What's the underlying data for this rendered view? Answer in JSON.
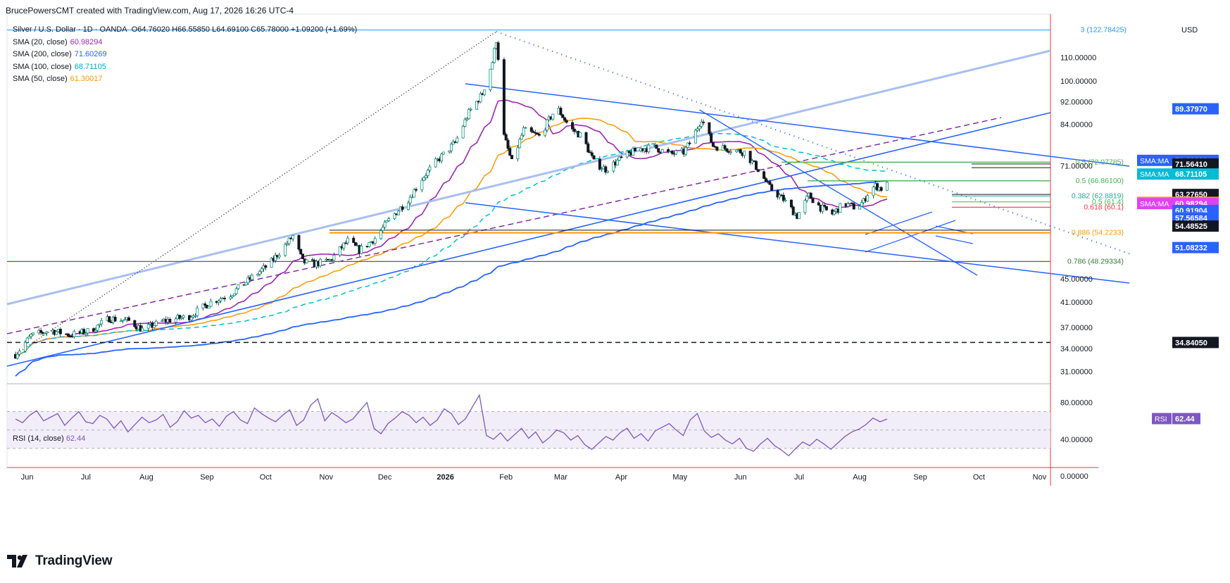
{
  "header": {
    "attribution": "BrucePowersCMT created with TradingView.com, Aug 17, 2026 16:26 UTC-4"
  },
  "symbol": {
    "name": "Silver / U.S. Dollar · 1D · OANDA",
    "ohlc": "O64.76020 H66.55850 L64.69100 C65.78000 +1.09200 (+1.69%)",
    "currency": "USD"
  },
  "indicators": [
    {
      "label": "SMA (20, close)",
      "value": "60.98294",
      "color": "#9c27b0"
    },
    {
      "label": "SMA (200, close)",
      "value": "71.60269",
      "color": "#2962ff"
    },
    {
      "label": "SMA (100, close)",
      "value": "68.71105",
      "color": "#00bcd4"
    },
    {
      "label": "SMA (50, close)",
      "value": "61.30017",
      "color": "#ff9800"
    }
  ],
  "rsi": {
    "label": "RSI (14, close)",
    "value": "62.44",
    "tag": "RSI",
    "color": "#7e57c2"
  },
  "branding": {
    "name": "TradingView"
  },
  "chart_data": {
    "type": "candlestick",
    "y_scale": "log",
    "ylim": [
      29.5,
      128
    ],
    "y_ticks": [
      "110.00000",
      "100.00000",
      "92.00000",
      "84.00000",
      "71.00000",
      "45.00000",
      "41.00000",
      "37.00000",
      "34.00000",
      "31.00000"
    ],
    "x_labels": [
      "Jun",
      "Jul",
      "Aug",
      "Sep",
      "Oct",
      "Nov",
      "Dec",
      "2026",
      "Feb",
      "Mar",
      "Apr",
      "May",
      "Jun",
      "Jul",
      "Aug",
      "Sep",
      "Oct",
      "Nov"
    ],
    "price_path": [
      [
        "2025-05-28",
        33.2
      ],
      [
        "2025-06-05",
        35.8
      ],
      [
        "2025-06-15",
        36.6
      ],
      [
        "2025-06-25",
        35.9
      ],
      [
        "2025-07-05",
        36.5
      ],
      [
        "2025-07-15",
        38.4
      ],
      [
        "2025-07-25",
        38.0
      ],
      [
        "2025-08-01",
        36.7
      ],
      [
        "2025-08-12",
        38.0
      ],
      [
        "2025-08-25",
        38.7
      ],
      [
        "2025-09-05",
        41.0
      ],
      [
        "2025-09-15",
        42.3
      ],
      [
        "2025-09-25",
        45.0
      ],
      [
        "2025-10-05",
        47.8
      ],
      [
        "2025-10-14",
        52.0
      ],
      [
        "2025-10-17",
        53.5
      ],
      [
        "2025-10-22",
        48.2
      ],
      [
        "2025-10-28",
        47.8
      ],
      [
        "2025-11-05",
        48.5
      ],
      [
        "2025-11-14",
        52.5
      ],
      [
        "2025-11-20",
        50.5
      ],
      [
        "2025-11-28",
        53.0
      ],
      [
        "2025-12-05",
        57.0
      ],
      [
        "2025-12-15",
        62.0
      ],
      [
        "2025-12-22",
        67.5
      ],
      [
        "2025-12-29",
        72.0
      ],
      [
        "2026-01-08",
        78.0
      ],
      [
        "2026-01-15",
        88.0
      ],
      [
        "2026-01-22",
        95.0
      ],
      [
        "2026-01-27",
        108.0
      ],
      [
        "2026-01-29",
        118.0
      ],
      [
        "2026-01-30",
        110.0
      ],
      [
        "2026-02-02",
        80.0
      ],
      [
        "2026-02-06",
        72.0
      ],
      [
        "2026-02-12",
        82.0
      ],
      [
        "2026-02-20",
        80.0
      ],
      [
        "2026-03-01",
        90.0
      ],
      [
        "2026-03-08",
        82.5
      ],
      [
        "2026-03-14",
        80.0
      ],
      [
        "2026-03-20",
        72.0
      ],
      [
        "2026-03-26",
        70.0
      ],
      [
        "2026-04-05",
        74.0
      ],
      [
        "2026-04-12",
        76.0
      ],
      [
        "2026-04-20",
        76.5
      ],
      [
        "2026-04-28",
        74.5
      ],
      [
        "2026-05-05",
        75.0
      ],
      [
        "2026-05-10",
        80.0
      ],
      [
        "2026-05-14",
        86.0
      ],
      [
        "2026-05-20",
        77.0
      ],
      [
        "2026-05-28",
        76.0
      ],
      [
        "2026-06-05",
        75.0
      ],
      [
        "2026-06-12",
        70.0
      ],
      [
        "2026-06-18",
        65.0
      ],
      [
        "2026-06-25",
        62.0
      ],
      [
        "2026-07-02",
        58.0
      ],
      [
        "2026-07-08",
        63.0
      ],
      [
        "2026-07-14",
        60.0
      ],
      [
        "2026-07-20",
        58.5
      ],
      [
        "2026-07-26",
        61.0
      ],
      [
        "2026-08-01",
        60.0
      ],
      [
        "2026-08-05",
        61.5
      ],
      [
        "2026-08-08",
        64.5
      ],
      [
        "2026-08-11",
        65.5
      ],
      [
        "2026-08-14",
        64.8
      ],
      [
        "2026-08-17",
        65.78
      ]
    ],
    "sma_values_last": {
      "SMA 20": 60.98294,
      "SMA 50": 61.30017,
      "SMA 100": 68.71105,
      "SMA 200": 71.60269
    },
    "price_labels": [
      {
        "text": "89.37970",
        "price": 89.3797,
        "color": "#2962ff"
      },
      {
        "text": "SMA:MA",
        "price": 72.6,
        "color": "#2962ff",
        "value": "71.60269"
      },
      {
        "text": "71.56410",
        "price": 71.5641,
        "color": "#131722"
      },
      {
        "text": "SMA:MA",
        "price": 68.71105,
        "color": "#00bcd4",
        "value": "68.71105"
      },
      {
        "text": "63.27650",
        "price": 63.2765,
        "color": "#131722"
      },
      {
        "text": "SMA:MA",
        "price": 61.30017,
        "color": "#ff9800",
        "value": "61.30017"
      },
      {
        "text": "SMA:MA",
        "price": 60.98294,
        "color": "#e040fb",
        "value": "60.98294"
      },
      {
        "text": "60.91904",
        "price": 59.3,
        "color": "#2962ff"
      },
      {
        "text": "57.56584",
        "price": 57.56584,
        "color": "#2962ff"
      },
      {
        "text": "54.48525",
        "price": 55.7,
        "color": "#131722"
      },
      {
        "text": "51.08232",
        "price": 51.08232,
        "color": "#2962ff"
      },
      {
        "text": "34.84050",
        "price": 34.8405,
        "color": "#131722"
      }
    ],
    "fib_levels": [
      {
        "label": "3 (122.78425)",
        "price": 122.78425,
        "color": "#2196f3"
      },
      {
        "label": "0.5 (72.07785)",
        "price": 72.07785,
        "color": "#4caf50"
      },
      {
        "label": "0.5 (66.86100)",
        "price": 66.861,
        "color": "#4caf50"
      },
      {
        "label": "0.382 (62.8819)",
        "price": 62.8819,
        "color": "#26a69a"
      },
      {
        "label": "0.5 (61.4)",
        "price": 61.4,
        "color": "#4caf50"
      },
      {
        "label": "0.618 (60.1)",
        "price": 60.1,
        "color": "#f23645"
      },
      {
        "label": "0.886 (54.2233)",
        "price": 54.2233,
        "color": "#ff9800"
      },
      {
        "label": "0.786 (48.29334)",
        "price": 48.29334,
        "color": "#2e7d32"
      }
    ],
    "rsi_ylim": [
      10,
      95
    ],
    "rsi_ticks": [
      "80.00000",
      "40.00000",
      "0.00000"
    ],
    "rsi_bands": [
      70,
      50,
      30
    ],
    "rsi_values": [
      62,
      58,
      66,
      71,
      60,
      64,
      68,
      55,
      63,
      70,
      59,
      57,
      66,
      62,
      52,
      60,
      48,
      56,
      64,
      58,
      61,
      67,
      53,
      59,
      71,
      63,
      66,
      58,
      62,
      54,
      65,
      70,
      61,
      57,
      74,
      68,
      63,
      59,
      66,
      72,
      55,
      61,
      77,
      84,
      60,
      69,
      64,
      58,
      62,
      71,
      80,
      52,
      46,
      57,
      63,
      70,
      66,
      58,
      64,
      55,
      61,
      73,
      68,
      56,
      62,
      75,
      88,
      44,
      40,
      47,
      38,
      45,
      52,
      41,
      48,
      36,
      42,
      50,
      47,
      39,
      44,
      34,
      29,
      36,
      43,
      39,
      47,
      52,
      41,
      46,
      38,
      49,
      53,
      57,
      50,
      44,
      61,
      68,
      49,
      42,
      46,
      39,
      35,
      41,
      30,
      27,
      35,
      41,
      33,
      28,
      22,
      30,
      37,
      33,
      40,
      35,
      29,
      36,
      43,
      48,
      51,
      56,
      63,
      59,
      62
    ],
    "rsi_x_range": [
      "2025-05-28",
      "2026-08-17"
    ]
  }
}
